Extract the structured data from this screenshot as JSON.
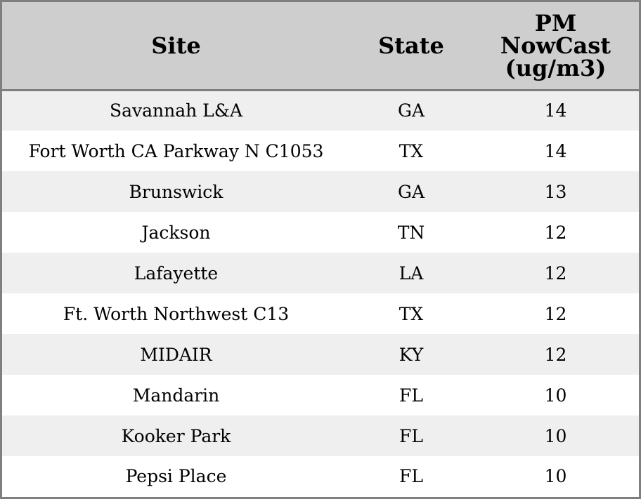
{
  "table": {
    "headers": {
      "site": "Site",
      "state": "State",
      "pm_line1": "PM",
      "pm_line2": "NowCast",
      "pm_line3": "(ug/m3)"
    },
    "rows": [
      {
        "site": "Savannah L&A",
        "state": "GA",
        "pm": "14"
      },
      {
        "site": "Fort Worth CA Parkway N C1053",
        "state": "TX",
        "pm": "14"
      },
      {
        "site": "Brunswick",
        "state": "GA",
        "pm": "13"
      },
      {
        "site": "Jackson",
        "state": "TN",
        "pm": "12"
      },
      {
        "site": "Lafayette",
        "state": "LA",
        "pm": "12"
      },
      {
        "site": "Ft. Worth Northwest C13",
        "state": "TX",
        "pm": "12"
      },
      {
        "site": "MIDAIR",
        "state": "KY",
        "pm": "12"
      },
      {
        "site": "Mandarin",
        "state": "FL",
        "pm": "10"
      },
      {
        "site": "Kooker Park",
        "state": "FL",
        "pm": "10"
      },
      {
        "site": "Pepsi Place",
        "state": "FL",
        "pm": "10"
      }
    ]
  }
}
